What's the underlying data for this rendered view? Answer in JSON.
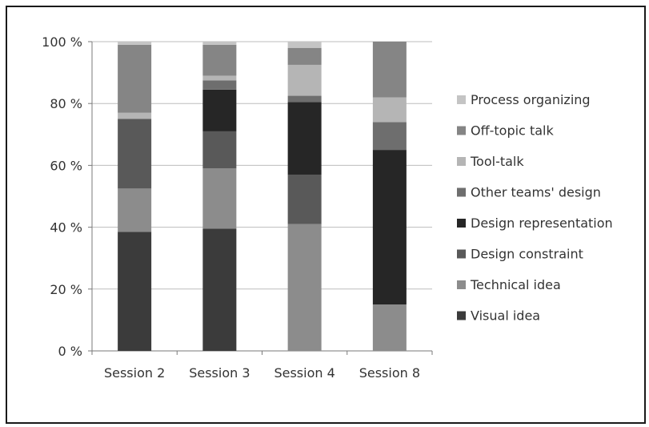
{
  "chart_data": {
    "type": "bar",
    "stacked": true,
    "categories": [
      "Session 2",
      "Session 3",
      "Session 4",
      "Session 8"
    ],
    "ylim": [
      0,
      100
    ],
    "yticks": [
      0,
      20,
      40,
      60,
      80,
      100
    ],
    "ytick_labels": [
      "0 %",
      "20 %",
      "40 %",
      "60 %",
      "80 %",
      "100 %"
    ],
    "grid": true,
    "legend_position": "right",
    "series": [
      {
        "name": "Visual idea",
        "color": "#3b3b3b",
        "values": [
          38.5,
          39.5,
          0,
          0
        ]
      },
      {
        "name": "Technical idea",
        "color": "#8c8c8c",
        "values": [
          14,
          19.5,
          41,
          15
        ]
      },
      {
        "name": "Design constraint",
        "color": "#595959",
        "values": [
          22.5,
          12,
          16,
          0
        ]
      },
      {
        "name": "Design representation",
        "color": "#262626",
        "values": [
          0,
          13.5,
          23.5,
          50
        ]
      },
      {
        "name": "Other teams' design",
        "color": "#6e6e6e",
        "values": [
          0,
          3,
          2,
          9
        ]
      },
      {
        "name": "Tool-talk",
        "color": "#b5b5b5",
        "values": [
          2,
          1.5,
          10,
          8
        ]
      },
      {
        "name": "Off-topic talk",
        "color": "#858585",
        "values": [
          22,
          10,
          5.5,
          18
        ]
      },
      {
        "name": "Process organizing",
        "color": "#c4c4c4",
        "values": [
          1,
          1,
          2,
          0
        ]
      }
    ]
  }
}
